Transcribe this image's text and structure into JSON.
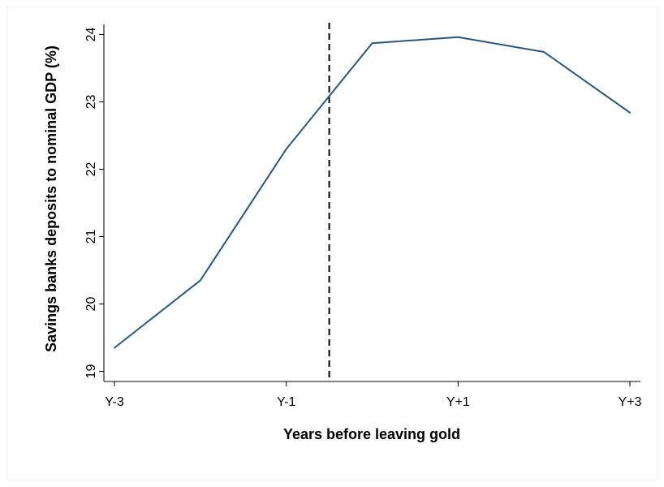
{
  "chart_data": {
    "type": "line",
    "title": "",
    "xlabel": "Years before leaving gold",
    "ylabel": "Savings banks deposits to nominal GDP (%)",
    "x": [
      -3,
      -2,
      -1,
      0,
      1,
      2,
      3
    ],
    "x_ticks": [
      {
        "value": -3,
        "label": "Y-3"
      },
      {
        "value": -1,
        "label": "Y-1"
      },
      {
        "value": 1,
        "label": "Y+1"
      },
      {
        "value": 3,
        "label": "Y+3"
      }
    ],
    "y_ticks": [
      19,
      20,
      21,
      22,
      23,
      24
    ],
    "xlim": [
      -3,
      3
    ],
    "ylim": [
      18.85,
      24.15
    ],
    "series": [
      {
        "values": [
          19.35,
          20.35,
          22.3,
          23.87,
          23.96,
          23.74,
          22.84
        ],
        "color": "#2a5778"
      }
    ],
    "reference_line": {
      "x": -0.5,
      "style": "dashed",
      "color": "#000000"
    },
    "grid": false,
    "legend": "none"
  }
}
